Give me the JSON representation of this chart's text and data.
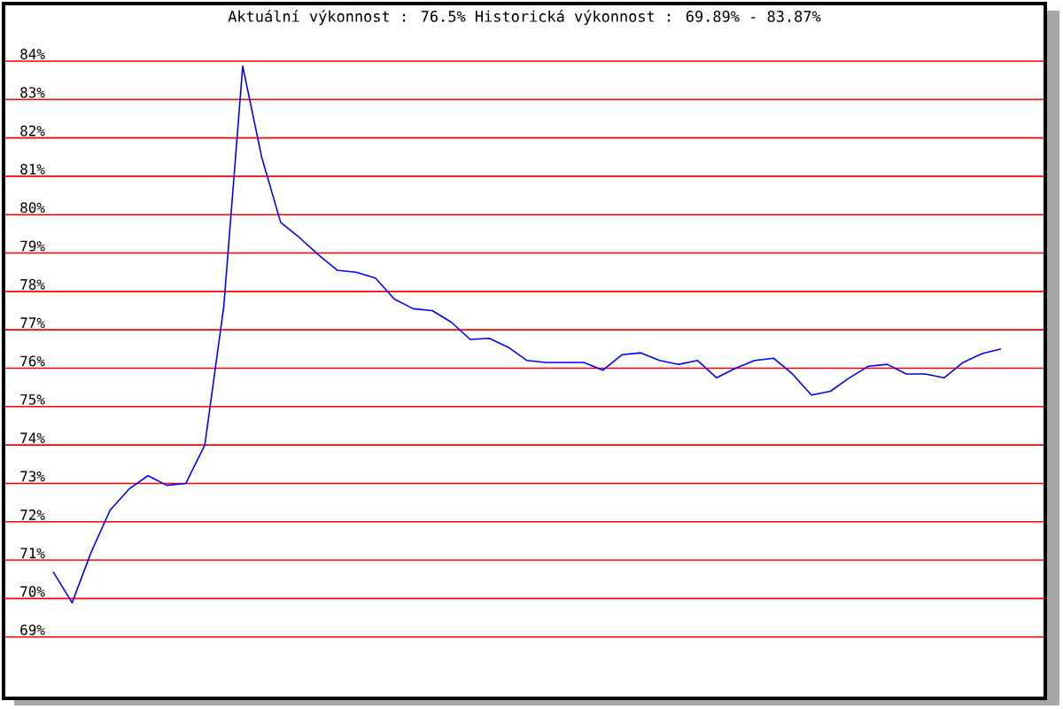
{
  "chart_data": {
    "type": "line",
    "title": "Aktuální výkonnost : 76.5%  Historická výkonnost : 69.89% - 83.87%",
    "categories": [
      null,
      null,
      null,
      null,
      null,
      null,
      null,
      null,
      null,
      null,
      null,
      null,
      null,
      null,
      null,
      null,
      null,
      null,
      null,
      null,
      null,
      null,
      null,
      null,
      null,
      null,
      null,
      null,
      null,
      null,
      null,
      null,
      null,
      null,
      null,
      null,
      null,
      null,
      null,
      null,
      null,
      null,
      null,
      null,
      null,
      null,
      null,
      null,
      null,
      null,
      null
    ],
    "values": [
      70.7,
      69.89,
      71.2,
      72.3,
      72.85,
      73.2,
      72.95,
      73.0,
      74.0,
      77.6,
      83.87,
      81.5,
      79.8,
      79.4,
      78.95,
      78.55,
      78.5,
      78.35,
      77.8,
      77.55,
      77.5,
      77.2,
      76.75,
      76.78,
      76.55,
      76.2,
      76.15,
      76.15,
      76.15,
      75.95,
      76.35,
      76.4,
      76.2,
      76.1,
      76.2,
      75.75,
      76.0,
      76.2,
      76.26,
      75.85,
      75.3,
      75.4,
      75.75,
      76.05,
      76.1,
      75.85,
      75.85,
      75.75,
      76.15,
      76.38,
      76.5
    ],
    "color": "#0000ff",
    "ylim": [
      67.4,
      85.5
    ],
    "yticks": [
      {
        "value": 69,
        "label": "69%"
      },
      {
        "value": 70,
        "label": "70%"
      },
      {
        "value": 71,
        "label": "71%"
      },
      {
        "value": 72,
        "label": "72%"
      },
      {
        "value": 73,
        "label": "73%"
      },
      {
        "value": 74,
        "label": "74%"
      },
      {
        "value": 75,
        "label": "75%"
      },
      {
        "value": 76,
        "label": "76%"
      },
      {
        "value": 77,
        "label": "77%"
      },
      {
        "value": 78,
        "label": "78%"
      },
      {
        "value": 79,
        "label": "79%"
      },
      {
        "value": 80,
        "label": "80%"
      },
      {
        "value": 81,
        "label": "81%"
      },
      {
        "value": 82,
        "label": "82%"
      },
      {
        "value": 83,
        "label": "83%"
      },
      {
        "value": 84,
        "label": "84%"
      }
    ],
    "grid": "y",
    "marker": "none",
    "line_style": "solid"
  }
}
